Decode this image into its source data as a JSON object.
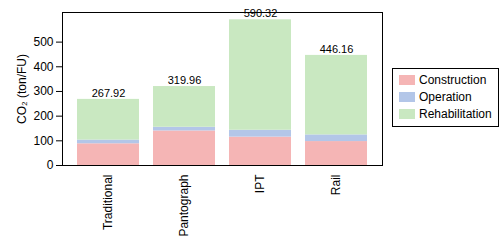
{
  "chart_data": {
    "type": "bar",
    "stacked": true,
    "y_label": "CO₂ (ton/FU)",
    "categories": [
      "Traditional",
      "Pantograph",
      "IPT",
      "Rail"
    ],
    "series": [
      {
        "name": "Construction",
        "color": "#f5b5b5",
        "values": [
          88,
          140,
          115,
          97
        ]
      },
      {
        "name": "Operation",
        "color": "#b3c6e8",
        "values": [
          15,
          15,
          28,
          27
        ]
      },
      {
        "name": "Rehabilitation",
        "color": "#c9e8c1",
        "values": [
          164.92,
          164.96,
          447.32,
          322.16
        ]
      }
    ],
    "totals": [
      267.92,
      319.96,
      590.32,
      446.16
    ],
    "ylim": [
      0,
      620
    ],
    "yticks": [
      0,
      100,
      200,
      300,
      400,
      500
    ],
    "legend": "right",
    "grid": false
  }
}
